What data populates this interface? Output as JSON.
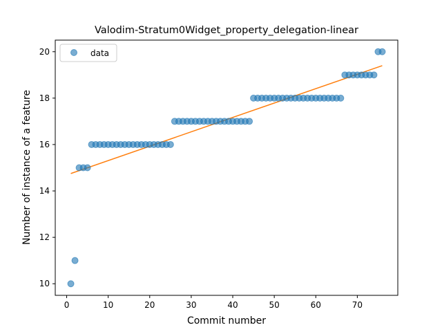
{
  "chart_data": {
    "type": "scatter",
    "title": "Valodim-Stratum0Widget_property_delegation-linear",
    "xlabel": "Commit number",
    "ylabel": "Number of instance of a feature",
    "xlim": [
      -2.75,
      79.75
    ],
    "ylim": [
      9.5,
      20.5
    ],
    "xticks": [
      0,
      10,
      20,
      30,
      40,
      50,
      60,
      70
    ],
    "yticks": [
      10,
      12,
      14,
      16,
      18,
      20
    ],
    "grid": false,
    "legend": {
      "placement": "top-left",
      "entries": [
        "data"
      ]
    },
    "series": [
      {
        "name": "data",
        "kind": "points",
        "color": "#1f77b4",
        "x": [
          1,
          2,
          3,
          4,
          5,
          6,
          7,
          8,
          9,
          10,
          11,
          12,
          13,
          14,
          15,
          16,
          17,
          18,
          19,
          20,
          21,
          22,
          23,
          24,
          25,
          26,
          27,
          28,
          29,
          30,
          31,
          32,
          33,
          34,
          35,
          36,
          37,
          38,
          39,
          40,
          41,
          42,
          43,
          44,
          45,
          46,
          47,
          48,
          49,
          50,
          51,
          52,
          53,
          54,
          55,
          56,
          57,
          58,
          59,
          60,
          61,
          62,
          63,
          64,
          65,
          66,
          67,
          68,
          69,
          70,
          71,
          72,
          73,
          74,
          75,
          76
        ],
        "y": [
          10,
          11,
          15,
          15,
          15,
          16,
          16,
          16,
          16,
          16,
          16,
          16,
          16,
          16,
          16,
          16,
          16,
          16,
          16,
          16,
          16,
          16,
          16,
          16,
          16,
          17,
          17,
          17,
          17,
          17,
          17,
          17,
          17,
          17,
          17,
          17,
          17,
          17,
          17,
          17,
          17,
          17,
          17,
          17,
          18,
          18,
          18,
          18,
          18,
          18,
          18,
          18,
          18,
          18,
          18,
          18,
          18,
          18,
          18,
          18,
          18,
          18,
          18,
          18,
          18,
          18,
          19,
          19,
          19,
          19,
          19,
          19,
          19,
          19,
          20,
          20
        ]
      },
      {
        "kind": "fit-line",
        "color": "#ff7f0e",
        "x": [
          1,
          76
        ],
        "y": [
          14.75,
          19.4
        ]
      }
    ]
  }
}
